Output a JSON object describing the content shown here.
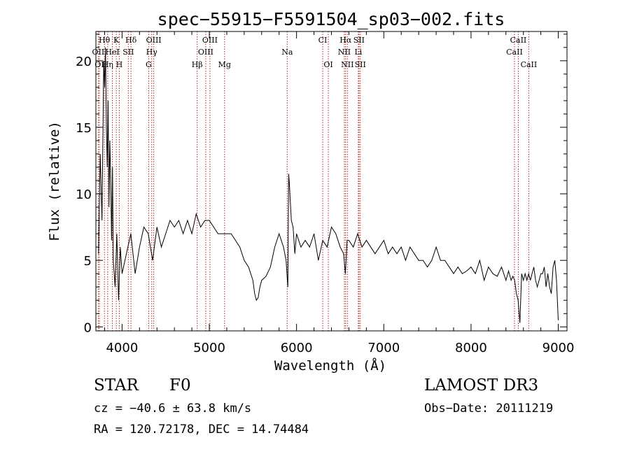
{
  "chart_data": {
    "type": "line",
    "title": "spec−55915−F5591504_sp03−002.fits",
    "xlabel": "Wavelength (Å)",
    "ylabel": "Flux (relative)",
    "xlim": [
      3700,
      9100
    ],
    "ylim": [
      -0.3,
      22.2
    ],
    "x_ticks": [
      4000,
      5000,
      6000,
      7000,
      8000,
      9000
    ],
    "y_ticks": [
      0,
      5,
      10,
      15,
      20
    ],
    "series": [
      {
        "name": "spectrum",
        "x": [
          3730,
          3750,
          3770,
          3790,
          3800,
          3810,
          3820,
          3830,
          3840,
          3850,
          3860,
          3870,
          3880,
          3890,
          3900,
          3920,
          3940,
          3960,
          3980,
          4000,
          4050,
          4100,
          4150,
          4200,
          4250,
          4300,
          4350,
          4400,
          4450,
          4500,
          4550,
          4600,
          4650,
          4700,
          4750,
          4800,
          4850,
          4900,
          4950,
          5000,
          5050,
          5100,
          5150,
          5200,
          5250,
          5300,
          5350,
          5400,
          5450,
          5500,
          5520,
          5540,
          5560,
          5580,
          5600,
          5650,
          5700,
          5750,
          5800,
          5850,
          5880,
          5890,
          5900,
          5910,
          5920,
          5940,
          5960,
          5980,
          6000,
          6050,
          6100,
          6150,
          6200,
          6250,
          6300,
          6350,
          6400,
          6450,
          6500,
          6540,
          6560,
          6580,
          6600,
          6650,
          6700,
          6750,
          6800,
          6850,
          6900,
          6950,
          7000,
          7050,
          7100,
          7150,
          7200,
          7250,
          7300,
          7350,
          7400,
          7450,
          7500,
          7550,
          7600,
          7650,
          7700,
          7750,
          7800,
          7850,
          7900,
          7950,
          8000,
          8050,
          8100,
          8150,
          8200,
          8250,
          8300,
          8350,
          8400,
          8430,
          8460,
          8480,
          8500,
          8520,
          8540,
          8560,
          8580,
          8600,
          8620,
          8640,
          8660,
          8680,
          8700,
          8720,
          8740,
          8760,
          8780,
          8800,
          8820,
          8840,
          8860,
          8880,
          8900,
          8920,
          8940,
          8960,
          8980,
          9000
        ],
        "y": [
          5.5,
          13,
          8,
          20,
          18,
          21,
          15,
          12,
          17,
          9,
          14,
          11,
          6.5,
          12,
          5,
          3,
          7,
          2,
          6,
          4,
          5.5,
          7,
          4,
          6,
          7.5,
          7,
          5,
          7.5,
          6,
          7,
          8,
          7.5,
          8,
          7,
          8,
          7,
          8.5,
          7.5,
          8,
          8,
          7.5,
          7,
          7,
          7,
          7,
          6.5,
          6,
          5,
          4.5,
          3.5,
          2.5,
          2,
          2.2,
          3,
          3.5,
          3.8,
          4.5,
          6,
          7,
          6,
          5,
          4,
          3,
          11.5,
          10.5,
          8,
          7.5,
          5.5,
          7,
          6,
          6.5,
          6,
          7,
          5,
          6.5,
          6,
          7.5,
          7,
          6,
          5.5,
          4,
          6.5,
          6.5,
          6,
          7,
          6,
          6.5,
          6,
          5.5,
          6,
          6.5,
          5.5,
          6,
          5.5,
          6,
          5,
          6,
          5.5,
          5,
          5,
          4.5,
          5,
          6,
          5,
          5,
          4.5,
          4,
          4.5,
          4,
          4.2,
          4.5,
          4,
          5,
          3.5,
          4.5,
          4,
          3.8,
          4.5,
          3.5,
          4.2,
          3.5,
          3.8,
          3.5,
          2.5,
          2,
          0.3,
          4,
          3.5,
          4,
          3.5,
          4,
          3.5,
          4,
          4.5,
          3.5,
          3,
          3.5,
          4,
          4,
          4.5,
          3,
          4,
          3,
          2.5,
          4.5,
          5,
          3.5,
          0.5
        ]
      }
    ],
    "lines": [
      {
        "name": "Hθ",
        "wave": 3798,
        "row": 0
      },
      {
        "name": "K",
        "wave": 3934,
        "row": 0
      },
      {
        "name": "Hδ",
        "wave": 4102,
        "row": 0
      },
      {
        "name": "OIII",
        "wave": 4363,
        "row": 0
      },
      {
        "name": "OIII",
        "wave": 5007,
        "row": 0
      },
      {
        "name": "CI",
        "wave": 6300,
        "row": 0
      },
      {
        "name": "Hα",
        "wave": 6563,
        "row": 0
      },
      {
        "name": "SII",
        "wave": 6716,
        "row": 0
      },
      {
        "name": "CaII",
        "wave": 8542,
        "row": 0
      },
      {
        "name": "OII",
        "wave": 3727,
        "row": 1
      },
      {
        "name": "HeI",
        "wave": 3889,
        "row": 1
      },
      {
        "name": "SII",
        "wave": 4072,
        "row": 1
      },
      {
        "name": "Hγ",
        "wave": 4340,
        "row": 1
      },
      {
        "name": "OIII",
        "wave": 4959,
        "row": 1
      },
      {
        "name": "Na",
        "wave": 5893,
        "row": 1
      },
      {
        "name": "NII",
        "wave": 6548,
        "row": 1
      },
      {
        "name": "Li",
        "wave": 6708,
        "row": 1
      },
      {
        "name": "CaII",
        "wave": 8498,
        "row": 1
      },
      {
        "name": "OI",
        "wave": 3740,
        "row": 2
      },
      {
        "name": "Hη",
        "wave": 3835,
        "row": 2
      },
      {
        "name": "H",
        "wave": 3968,
        "row": 2
      },
      {
        "name": "G",
        "wave": 4305,
        "row": 2
      },
      {
        "name": "Hβ",
        "wave": 4861,
        "row": 2
      },
      {
        "name": "Mg",
        "wave": 5175,
        "row": 2
      },
      {
        "name": "OI",
        "wave": 6364,
        "row": 2
      },
      {
        "name": "NII",
        "wave": 6583,
        "row": 2
      },
      {
        "name": "SII",
        "wave": 6731,
        "row": 2
      },
      {
        "name": "CaII",
        "wave": 8662,
        "row": 2
      }
    ]
  },
  "info": {
    "object_class": "STAR",
    "subclass": "F0",
    "survey": "LAMOST DR3",
    "cz": "cz = −40.6 ± 63.8 km/s",
    "obs_date": "Obs−Date: 20111219",
    "coords": "RA = 120.72178, DEC =  14.74484"
  },
  "colors": {
    "axis": "#000000",
    "line_marker": "#b22222",
    "spectrum": "#000000"
  }
}
